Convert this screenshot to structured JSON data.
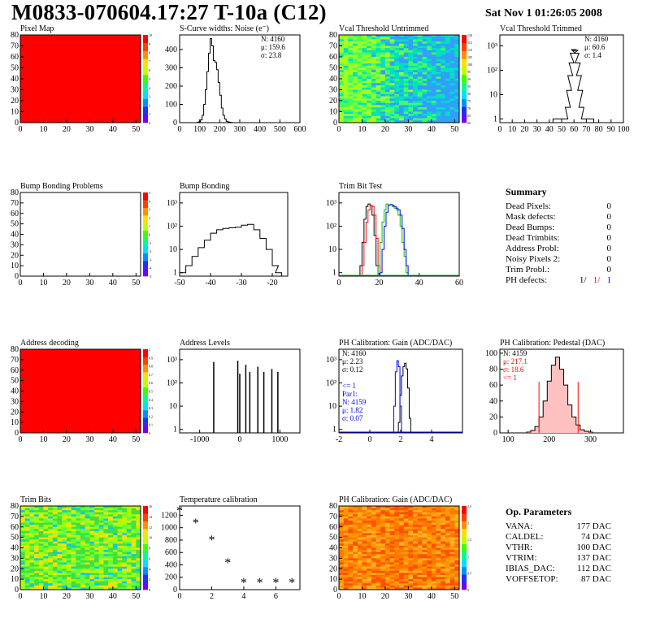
{
  "header": {
    "title": "M0833-070604.17:27 T-10a (C12)",
    "date": "Sat Nov  1 01:26:05 2008"
  },
  "colors": {
    "red": "#ff0000",
    "blue": "#0000ff",
    "green": "#00c000",
    "black": "#000000"
  },
  "chart_data": [
    {
      "type": "heatmap",
      "title": "Pixel Map",
      "fill": "uniform red",
      "xlim": [
        0,
        52
      ],
      "ylim": [
        0,
        80
      ],
      "xticks": [
        "0",
        "10",
        "20",
        "30",
        "40",
        "50"
      ],
      "yticks": [
        "0",
        "10",
        "20",
        "30",
        "40",
        "50",
        "60",
        "70",
        "80"
      ],
      "zticks": [
        "0",
        "1",
        "2",
        "3",
        "4",
        "5",
        "6",
        "7",
        "8",
        "9",
        "10"
      ]
    },
    {
      "type": "histogram",
      "title": "S-Curve widths: Noise (e⁻)",
      "stats": [
        "N: 4160",
        "μ: 159.6",
        "σ: 23.8"
      ],
      "xlim": [
        0,
        600
      ],
      "ylim": [
        0,
        480
      ],
      "xticks": [
        "0",
        "100",
        "200",
        "300",
        "400",
        "500",
        "600"
      ],
      "yticks": [
        "0",
        "100",
        "200",
        "300",
        "400"
      ],
      "x": [
        92,
        100,
        108,
        116,
        124,
        132,
        140,
        148,
        156,
        164,
        172,
        180,
        188,
        196,
        204,
        212,
        220,
        228,
        236,
        244,
        252,
        260,
        268
      ],
      "values": [
        2,
        5,
        15,
        40,
        100,
        180,
        280,
        380,
        460,
        420,
        340,
        330,
        290,
        220,
        150,
        80,
        40,
        20,
        8,
        4,
        2,
        1,
        0
      ]
    },
    {
      "type": "heatmap",
      "title": "Vcal Threshold Untrimmed",
      "fill": "noisy cyan-green map, bluer on right",
      "xlim": [
        0,
        52
      ],
      "ylim": [
        0,
        80
      ],
      "xticks": [
        "0",
        "10",
        "20",
        "30",
        "40",
        "50"
      ],
      "yticks": [
        "0",
        "10",
        "20",
        "30",
        "40",
        "50",
        "60",
        "70",
        "80"
      ],
      "zticks": [
        "60",
        "65",
        "70",
        "75",
        "80",
        "85",
        "90",
        "95",
        "100",
        "105",
        "110",
        "115",
        "120"
      ]
    },
    {
      "type": "histogram",
      "title": "Vcal Threshold Trimmed",
      "stats": [
        "N: 4160",
        "μ: 60.6",
        "σ: 1.4"
      ],
      "yscale": "log",
      "xlim": [
        0,
        100
      ],
      "xticks": [
        "0",
        "10",
        "20",
        "30",
        "40",
        "50",
        "60",
        "70",
        "80",
        "90",
        "100"
      ],
      "yticks": [
        "1",
        "10",
        "10²",
        "10³"
      ],
      "x": [
        45,
        49,
        53,
        55,
        56,
        57,
        58,
        59,
        60,
        61,
        62,
        63,
        64,
        65,
        66,
        68,
        74
      ],
      "values": [
        1,
        1,
        1,
        3,
        15,
        60,
        200,
        500,
        700,
        650,
        500,
        200,
        60,
        15,
        3,
        1,
        1
      ]
    },
    {
      "type": "heatmap",
      "title": "Bump Bonding Problems",
      "fill": "empty",
      "xlim": [
        0,
        52
      ],
      "ylim": [
        0,
        80
      ],
      "xticks": [
        "0",
        "10",
        "20",
        "30",
        "40",
        "50"
      ],
      "yticks": [
        "0",
        "10",
        "20",
        "30",
        "40",
        "50",
        "60",
        "70",
        "80"
      ],
      "zticks": [
        "-5",
        "-4",
        "-3",
        "-2",
        "-1",
        "0",
        "1",
        "2",
        "3",
        "4",
        "5"
      ]
    },
    {
      "type": "histogram",
      "title": "Bump Bonding",
      "yscale": "log",
      "xlim": [
        -50,
        -15
      ],
      "xticks": [
        "-50",
        "-40",
        "-30",
        "-20"
      ],
      "yticks": [
        "1",
        "10",
        "10²",
        "10³"
      ],
      "x": [
        -49,
        -47,
        -45,
        -43,
        -41,
        -39,
        -37,
        -35,
        -33,
        -31,
        -29,
        -27,
        -25,
        -23,
        -21,
        -19,
        -18
      ],
      "values": [
        1,
        2,
        5,
        12,
        25,
        50,
        70,
        80,
        85,
        90,
        110,
        120,
        70,
        30,
        10,
        2,
        1
      ]
    },
    {
      "type": "histogram",
      "title": "Trim Bit Test",
      "yscale": "log",
      "xlim": [
        0,
        60
      ],
      "xticks": [
        "0",
        "20",
        "40",
        "60"
      ],
      "yticks": [
        "1",
        "10",
        "10²",
        "10³"
      ],
      "series": [
        {
          "x": [
            11,
            12,
            13,
            14,
            15,
            16,
            17,
            18,
            19
          ],
          "values": [
            2,
            20,
            200,
            700,
            900,
            800,
            300,
            40,
            2
          ],
          "color": "#000000"
        },
        {
          "x": [
            12,
            13,
            14,
            15,
            16,
            17,
            18,
            19,
            20
          ],
          "values": [
            2,
            20,
            150,
            500,
            800,
            700,
            300,
            30,
            2
          ],
          "color": "#ff0000"
        },
        {
          "x": [
            20,
            21,
            22,
            23,
            24,
            25,
            26,
            27,
            28,
            29,
            30,
            31,
            32,
            33,
            34
          ],
          "values": [
            2,
            20,
            150,
            500,
            900,
            800,
            850,
            700,
            600,
            500,
            300,
            100,
            20,
            5,
            1
          ],
          "color": "#00c000"
        },
        {
          "x": [
            21,
            22,
            23,
            24,
            25,
            26,
            27,
            28,
            29,
            30,
            31,
            32,
            33,
            34
          ],
          "values": [
            1,
            10,
            100,
            400,
            800,
            850,
            800,
            700,
            600,
            500,
            300,
            80,
            10,
            2
          ],
          "color": "#0000ff"
        }
      ]
    },
    {
      "type": "heatmap",
      "title": "Address decoding",
      "fill": "uniform red",
      "xlim": [
        0,
        52
      ],
      "ylim": [
        0,
        80
      ],
      "xticks": [
        "0",
        "10",
        "20",
        "30",
        "40",
        "50"
      ],
      "yticks": [
        "0",
        "10",
        "20",
        "30",
        "40",
        "50",
        "60",
        "70",
        "80"
      ],
      "zticks": [
        "0",
        "0.1",
        "0.2",
        "0.3",
        "0.4",
        "0.5",
        "0.6",
        "0.7",
        "0.8",
        "0.9",
        "1"
      ]
    },
    {
      "type": "histogram",
      "title": "Address Levels",
      "yscale": "log",
      "xlim": [
        -1500,
        1500
      ],
      "xticks": [
        "-1000",
        "0",
        "1000"
      ],
      "yticks": [
        "1",
        "10",
        "10²",
        "10³"
      ],
      "x": [
        -650,
        -50,
        0,
        150,
        250,
        450,
        600,
        800,
        950
      ],
      "values": [
        800,
        900,
        250,
        600,
        300,
        500,
        300,
        400,
        300
      ]
    },
    {
      "type": "histogram",
      "title": "PH Calibration: Gain (ADC/DAC)",
      "yscale": "log",
      "xlim": [
        -2,
        6
      ],
      "xticks": [
        "-2",
        "0",
        "2",
        "4"
      ],
      "yticks": [
        "1",
        "10",
        "10²",
        "10³"
      ],
      "stats": [
        "N: 4160",
        "μ: 2.23",
        "σ: 0.12"
      ],
      "stats2": [
        "<= 1",
        "Par1:",
        "N: 4159",
        "μ: 1.82",
        "σ: 0.07"
      ],
      "series": [
        {
          "x": [
            1.9,
            2.0,
            2.1,
            2.2,
            2.3,
            2.4,
            2.5,
            2.6
          ],
          "values": [
            2,
            30,
            200,
            500,
            700,
            400,
            60,
            3
          ],
          "color": "#000000"
        },
        {
          "x": [
            1.6,
            1.7,
            1.8,
            1.9,
            2.0
          ],
          "values": [
            10,
            300,
            900,
            500,
            10
          ],
          "color": "#0000ff"
        }
      ]
    },
    {
      "type": "histogram",
      "title": "PH Calibration: Pedestal (DAC)",
      "xlim": [
        80,
        380
      ],
      "ylim": [
        0,
        105
      ],
      "xticks": [
        "100",
        "200",
        "300"
      ],
      "yticks": [
        "0",
        "20",
        "40",
        "60",
        "80",
        "100"
      ],
      "stats": [
        "N: 4159",
        "μ: 217.1",
        "σ: 18.6",
        "<= 1"
      ],
      "x": [
        150,
        160,
        170,
        180,
        190,
        200,
        210,
        220,
        230,
        240,
        250,
        260,
        270,
        280,
        290,
        300
      ],
      "values": [
        1,
        3,
        8,
        20,
        40,
        65,
        85,
        95,
        80,
        60,
        35,
        20,
        10,
        4,
        2,
        1
      ]
    },
    {
      "type": "heatmap",
      "title": "Trim Bits",
      "fill": "noisy green-yellow map",
      "xlim": [
        0,
        52
      ],
      "ylim": [
        0,
        80
      ],
      "xticks": [
        "0",
        "10",
        "20",
        "30",
        "40",
        "50"
      ],
      "yticks": [
        "0",
        "10",
        "20",
        "30",
        "40",
        "50",
        "60",
        "70",
        "80"
      ],
      "zticks": [
        "0",
        "2",
        "4",
        "6",
        "8",
        "10",
        "12",
        "14",
        "16"
      ]
    },
    {
      "type": "scatter",
      "title": "Temperature calibration",
      "xlim": [
        0,
        7.5
      ],
      "ylim": [
        0,
        1350
      ],
      "xticks": [
        "0",
        "2",
        "4",
        "6"
      ],
      "yticks": [
        "0",
        "200",
        "400",
        "600",
        "800",
        "1000",
        "1200"
      ],
      "x": [
        0,
        1,
        2,
        3,
        4,
        5,
        6,
        7
      ],
      "y": [
        1270,
        1075,
        800,
        430,
        110,
        110,
        110,
        110
      ]
    },
    {
      "type": "heatmap",
      "title": "PH Calibration: Gain (ADC/DAC)",
      "fill": "noisy orange-red map",
      "xlim": [
        0,
        52
      ],
      "ylim": [
        0,
        80
      ],
      "xticks": [
        "0",
        "10",
        "20",
        "30",
        "40",
        "50"
      ],
      "yticks": [
        "0",
        "10",
        "20",
        "30",
        "40",
        "50",
        "60",
        "70",
        "80"
      ],
      "zticks": [
        "0",
        "0.5",
        "1",
        "1.5",
        "2",
        "2.5"
      ]
    }
  ],
  "summary": {
    "title": "Summary",
    "rows": [
      {
        "label": "Dead Pixels:",
        "value": "0"
      },
      {
        "label": "Mask defects:",
        "value": "0"
      },
      {
        "label": "Dead Bumps:",
        "value": "0"
      },
      {
        "label": "Dead Trimbits:",
        "value": "0"
      },
      {
        "label": "Address Probl:",
        "value": "0"
      },
      {
        "label": "Noisy Pixels 2:",
        "value": "0"
      },
      {
        "label": "Trim Probl.:",
        "value": "0"
      }
    ],
    "ph_label": "PH defects:",
    "ph_values": [
      "1/",
      "1/",
      "1"
    ]
  },
  "params": {
    "title": "Op. Parameters",
    "rows": [
      {
        "label": "VANA:",
        "value": "177 DAC"
      },
      {
        "label": "CALDEL:",
        "value": "74 DAC"
      },
      {
        "label": "VTHR:",
        "value": "100 DAC"
      },
      {
        "label": "VTRIM:",
        "value": "137 DAC"
      },
      {
        "label": "IBIAS_DAC:",
        "value": "112 DAC"
      },
      {
        "label": "VOFFSETOP:",
        "value": "87 DAC"
      }
    ]
  }
}
